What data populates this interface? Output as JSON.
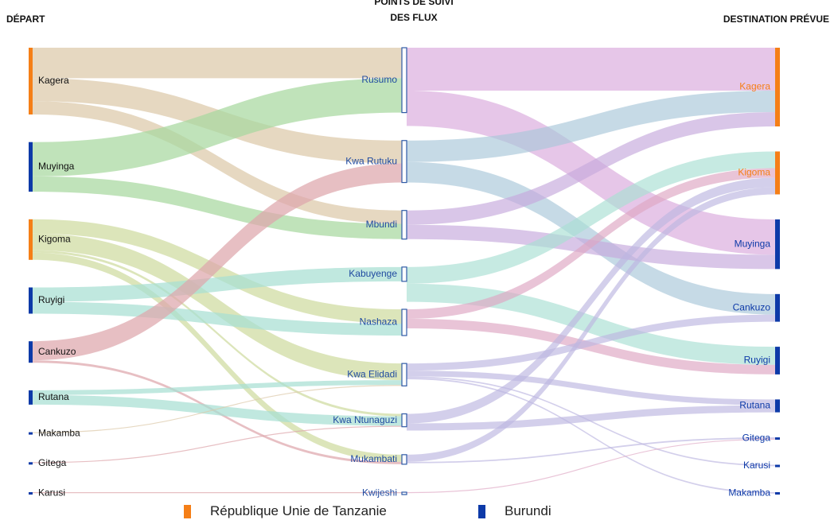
{
  "headers": {
    "depart": "DÉPART",
    "points_line1": "POINTS DE SUIVI",
    "points_line2": "DES FLUX",
    "destination": "DESTINATION PRÉVUE"
  },
  "legend": [
    {
      "label": "République Unie de Tanzanie",
      "color": "#f57f17"
    },
    {
      "label": "Burundi",
      "color": "#0d3aa8"
    }
  ],
  "chart_data": {
    "type": "sankey",
    "country_colors": {
      "tz": "#f57f17",
      "bi": "#0d3aa8"
    },
    "sources": [
      {
        "name": "Kagera",
        "country": "tz"
      },
      {
        "name": "Muyinga",
        "country": "bi"
      },
      {
        "name": "Kigoma",
        "country": "tz"
      },
      {
        "name": "Ruyigi",
        "country": "bi"
      },
      {
        "name": "Cankuzo",
        "country": "bi"
      },
      {
        "name": "Rutana",
        "country": "bi"
      },
      {
        "name": "Makamba",
        "country": "bi"
      },
      {
        "name": "Gitega",
        "country": "bi"
      },
      {
        "name": "Karusi",
        "country": "bi"
      }
    ],
    "points": [
      "Rusumo",
      "Kwa Rutuku",
      "Mbundi",
      "Kabuyenge",
      "Nashaza",
      "Kwa Elidadi",
      "Kwa Ntunaguzi",
      "Mukambati",
      "Kwijeshi"
    ],
    "destinations": [
      {
        "name": "Kagera",
        "country": "tz"
      },
      {
        "name": "Kigoma",
        "country": "tz"
      },
      {
        "name": "Muyinga",
        "country": "bi"
      },
      {
        "name": "Cankuzo",
        "country": "bi"
      },
      {
        "name": "Ruyigi",
        "country": "bi"
      },
      {
        "name": "Rutana",
        "country": "bi"
      },
      {
        "name": "Gitega",
        "country": "bi"
      },
      {
        "name": "Karusi",
        "country": "bi"
      },
      {
        "name": "Makamba",
        "country": "bi"
      }
    ],
    "flows_in": [
      {
        "source": "Kagera",
        "point": "Rusumo",
        "value": 64,
        "color": "#dcc9a9"
      },
      {
        "source": "Kagera",
        "point": "Kwa Rutuku",
        "value": 48,
        "color": "#dcc9a9"
      },
      {
        "source": "Kagera",
        "point": "Mbundi",
        "value": 28,
        "color": "#dcc9a9"
      },
      {
        "source": "Muyinga",
        "point": "Rusumo",
        "value": 72,
        "color": "#a8d8a0"
      },
      {
        "source": "Muyinga",
        "point": "Mbundi",
        "value": 32,
        "color": "#a8d8a0"
      },
      {
        "source": "Kigoma",
        "point": "Nashaza",
        "value": 30,
        "color": "#cfdba0"
      },
      {
        "source": "Kigoma",
        "point": "Kwa Elidadi",
        "value": 35,
        "color": "#cfdba0"
      },
      {
        "source": "Kigoma",
        "point": "Kwa Ntunaguzi",
        "value": 5,
        "color": "#cfdba0"
      },
      {
        "source": "Kigoma",
        "point": "Mukambati",
        "value": 15,
        "color": "#cfdba0"
      },
      {
        "source": "Ruyigi",
        "point": "Kabuyenge",
        "value": 30,
        "color": "#a8dfd3"
      },
      {
        "source": "Ruyigi",
        "point": "Nashaza",
        "value": 25,
        "color": "#a8dfd3"
      },
      {
        "source": "Cankuzo",
        "point": "Kwa Rutuku",
        "value": 40,
        "color": "#dea6ac"
      },
      {
        "source": "Cankuzo",
        "point": "Mukambati",
        "value": 5,
        "color": "#dea6ac"
      },
      {
        "source": "Rutana",
        "point": "Kwa Elidadi",
        "value": 10,
        "color": "#a8dfd3"
      },
      {
        "source": "Rutana",
        "point": "Kwa Ntunaguzi",
        "value": 20,
        "color": "#a8dfd3"
      },
      {
        "source": "Makamba",
        "point": "Kwa Elidadi",
        "value": 2,
        "color": "#dcc9a9"
      },
      {
        "source": "Gitega",
        "point": "Kwa Ntunaguzi",
        "value": 2,
        "color": "#dea6ac"
      },
      {
        "source": "Karusi",
        "point": "Kwijeshi",
        "value": 2,
        "color": "#dea6ac"
      }
    ],
    "flows_out": [
      {
        "point": "Rusumo",
        "destination": "Kagera",
        "value": 90,
        "color": "#d9a8dc"
      },
      {
        "point": "Rusumo",
        "destination": "Muyinga",
        "value": 74,
        "color": "#d9a8dc"
      },
      {
        "point": "Kwa Rutuku",
        "destination": "Kagera",
        "value": 45,
        "color": "#a8c7d9"
      },
      {
        "point": "Kwa Rutuku",
        "destination": "Cankuzo",
        "value": 43,
        "color": "#a8c7d9"
      },
      {
        "point": "Mbundi",
        "destination": "Kagera",
        "value": 30,
        "color": "#c6a8dc"
      },
      {
        "point": "Mbundi",
        "destination": "Muyinga",
        "value": 30,
        "color": "#c6a8dc"
      },
      {
        "point": "Kabuyenge",
        "destination": "Kigoma",
        "value": 35,
        "color": "#a8dfd3"
      },
      {
        "point": "Kabuyenge",
        "destination": "Ruyigi",
        "value": 38,
        "color": "#a8dfd3"
      },
      {
        "point": "Nashaza",
        "destination": "Kigoma",
        "value": 20,
        "color": "#dea6c2"
      },
      {
        "point": "Nashaza",
        "destination": "Ruyigi",
        "value": 20,
        "color": "#dea6c2"
      },
      {
        "point": "Kwa Elidadi",
        "destination": "Cankuzo",
        "value": 15,
        "color": "#bcb6e0"
      },
      {
        "point": "Kwa Elidadi",
        "destination": "Rutana",
        "value": 12,
        "color": "#bcb6e0"
      },
      {
        "point": "Kwa Elidadi",
        "destination": "Karusi",
        "value": 3,
        "color": "#bcb6e0"
      },
      {
        "point": "Kwa Elidadi",
        "destination": "Makamba",
        "value": 3,
        "color": "#bcb6e0"
      },
      {
        "point": "Kwa Ntunaguzi",
        "destination": "Kigoma",
        "value": 20,
        "color": "#bcb6e0"
      },
      {
        "point": "Kwa Ntunaguzi",
        "destination": "Rutana",
        "value": 15,
        "color": "#bcb6e0"
      },
      {
        "point": "Mukambati",
        "destination": "Kigoma",
        "value": 15,
        "color": "#bcb6e0"
      },
      {
        "point": "Mukambati",
        "destination": "Gitega",
        "value": 3,
        "color": "#bcb6e0"
      },
      {
        "point": "Kwijeshi",
        "destination": "Gitega",
        "value": 2,
        "color": "#dea6c2"
      }
    ]
  }
}
